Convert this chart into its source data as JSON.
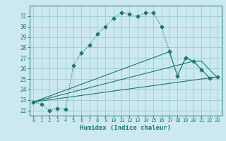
{
  "xlabel": "Humidex (Indice chaleur)",
  "xlim": [
    -0.5,
    23.5
  ],
  "ylim": [
    21.5,
    32.0
  ],
  "yticks": [
    22,
    23,
    24,
    25,
    26,
    27,
    28,
    29,
    30,
    31
  ],
  "xticks": [
    0,
    1,
    2,
    3,
    4,
    5,
    6,
    7,
    8,
    9,
    10,
    11,
    12,
    13,
    14,
    15,
    16,
    17,
    18,
    19,
    20,
    21,
    22,
    23
  ],
  "background_color": "#cce9f0",
  "grid_color": "#9ecfdc",
  "line_color": "#1a7a6e",
  "series1_x": [
    0,
    1,
    2,
    3,
    4,
    5,
    6,
    7,
    8,
    9,
    10,
    11,
    12,
    13,
    14,
    15,
    16,
    17,
    18,
    19,
    20,
    21,
    22,
    23
  ],
  "series1_y": [
    22.8,
    22.6,
    22.0,
    22.2,
    22.1,
    26.3,
    27.5,
    28.2,
    29.3,
    30.0,
    30.8,
    31.35,
    31.2,
    31.0,
    31.3,
    31.3,
    30.0,
    27.6,
    25.3,
    27.0,
    26.7,
    25.9,
    25.1,
    25.2
  ],
  "series2_x": [
    0,
    22,
    23
  ],
  "series2_y": [
    22.8,
    25.1,
    25.2
  ],
  "series3_x": [
    0,
    20,
    21,
    22,
    23
  ],
  "series3_y": [
    22.8,
    26.7,
    26.7,
    25.9,
    25.1
  ],
  "series4_x": [
    0,
    17,
    18,
    19,
    20,
    21,
    22,
    23
  ],
  "series4_y": [
    22.8,
    27.6,
    25.3,
    27.0,
    26.7,
    25.9,
    25.1,
    25.2
  ]
}
